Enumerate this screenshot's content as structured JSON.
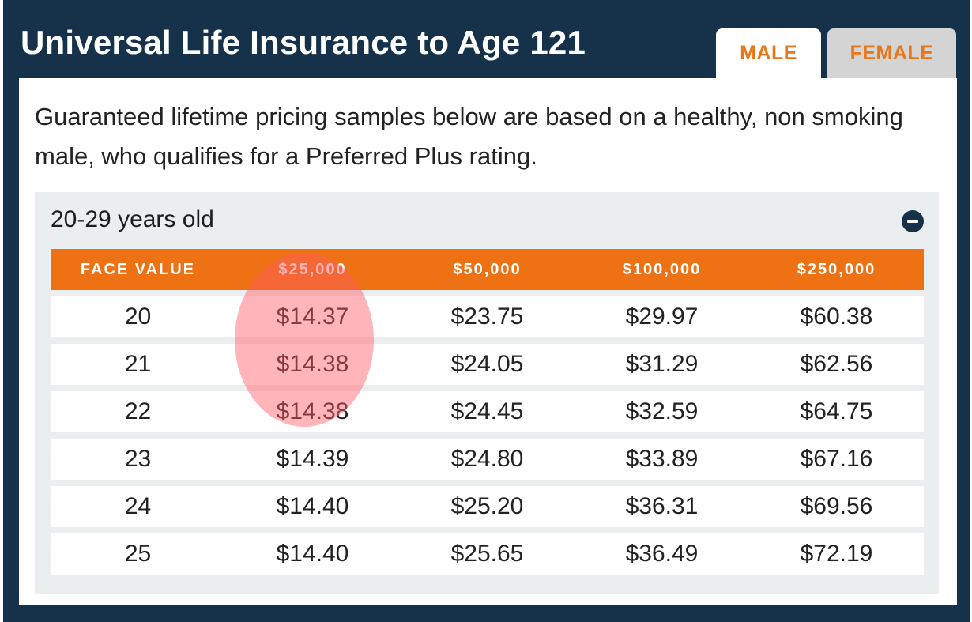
{
  "title": "Universal Life Insurance to Age 121",
  "tabs": [
    {
      "label": "MALE",
      "active": true
    },
    {
      "label": "FEMALE",
      "active": false
    }
  ],
  "intro_text": "Guaranteed lifetime pricing samples below are based on a healthy, non smoking male, who qualifies for a Preferred Plus rating.",
  "accordion": {
    "title": "20-29 years old",
    "icon": "minus-circle-icon"
  },
  "table": {
    "headers": [
      "FACE VALUE",
      "$25,000",
      "$50,000",
      "$100,000",
      "$250,000"
    ],
    "rows": [
      [
        "20",
        "$14.37",
        "$23.75",
        "$29.97",
        "$60.38"
      ],
      [
        "21",
        "$14.38",
        "$24.05",
        "$31.29",
        "$62.56"
      ],
      [
        "22",
        "$14.38",
        "$24.45",
        "$32.59",
        "$64.75"
      ],
      [
        "23",
        "$14.39",
        "$24.80",
        "$33.89",
        "$67.16"
      ],
      [
        "24",
        "$14.40",
        "$25.20",
        "$36.31",
        "$69.56"
      ],
      [
        "25",
        "$14.40",
        "$25.65",
        "$36.49",
        "$72.19"
      ]
    ]
  },
  "colors": {
    "frame": "#15324a",
    "accent": "#ee7114",
    "tab_text": "#e8761a",
    "inactive_tab": "#d4d4d4",
    "accordion_bg": "#ebeeee",
    "highlight": "#ff5a64"
  }
}
